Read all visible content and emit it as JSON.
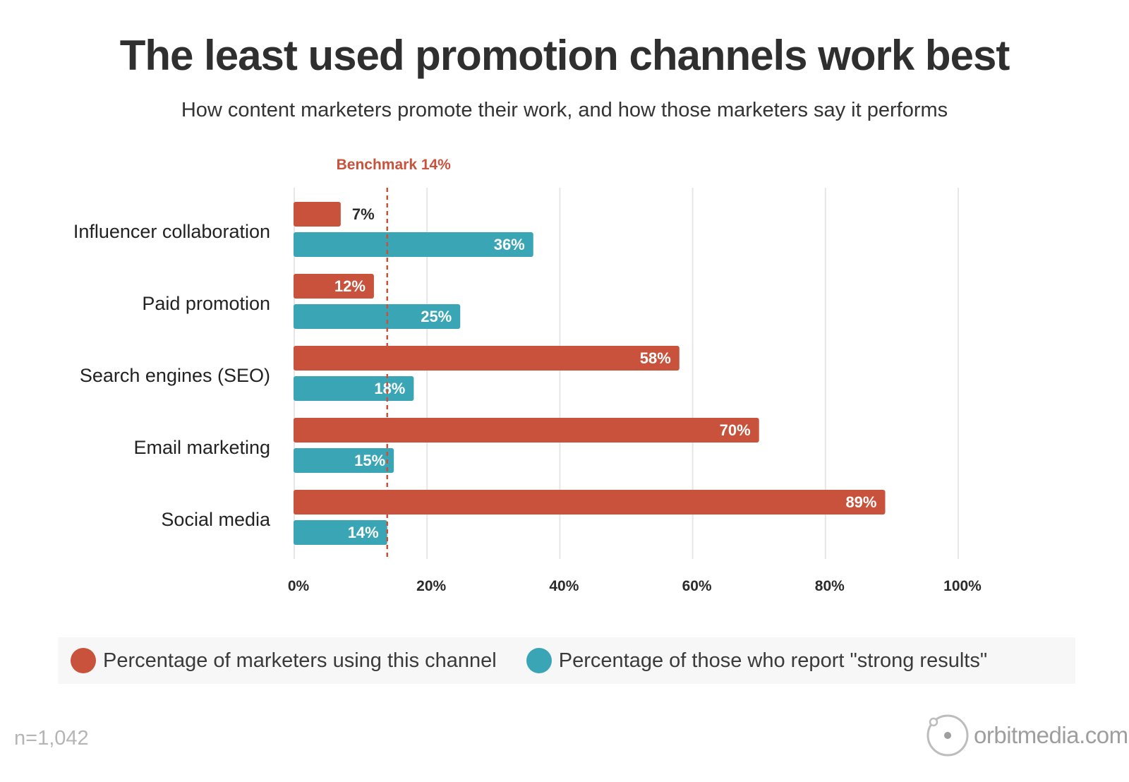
{
  "chart_data": {
    "type": "bar",
    "orientation": "horizontal",
    "title": "The least used promotion channels work best",
    "subtitle": "How content marketers promote their work, and how those marketers say it performs",
    "categories": [
      "Influencer collaboration",
      "Paid promotion",
      "Search engines (SEO)",
      "Email marketing",
      "Social media"
    ],
    "series": [
      {
        "name": "Percentage of marketers using this channel",
        "values": [
          7,
          12,
          58,
          70,
          89
        ],
        "labels": [
          "7%",
          "12%",
          "58%",
          "70%",
          "89%"
        ],
        "color": "#c8523b"
      },
      {
        "name": "Percentage of those who report \"strong results\"",
        "values": [
          36,
          25,
          18,
          15,
          14
        ],
        "labels": [
          "36%",
          "25%",
          "18%",
          "15%",
          "14%"
        ],
        "color": "#3aa6b5"
      }
    ],
    "xlim": [
      0,
      100
    ],
    "xticks": [
      0,
      20,
      40,
      60,
      80,
      100
    ],
    "xtick_labels": [
      "0%",
      "20%",
      "40%",
      "60%",
      "80%",
      "100%"
    ],
    "grid": true,
    "legend_position": "bottom",
    "benchmark": {
      "value": 14,
      "label": "Benchmark 14%",
      "color": "#c8523b"
    }
  },
  "footer": {
    "sample_size": "n=1,042",
    "brand": "orbitmedia.com"
  },
  "icons": {
    "brand_logo": "orbit-logo-icon"
  }
}
